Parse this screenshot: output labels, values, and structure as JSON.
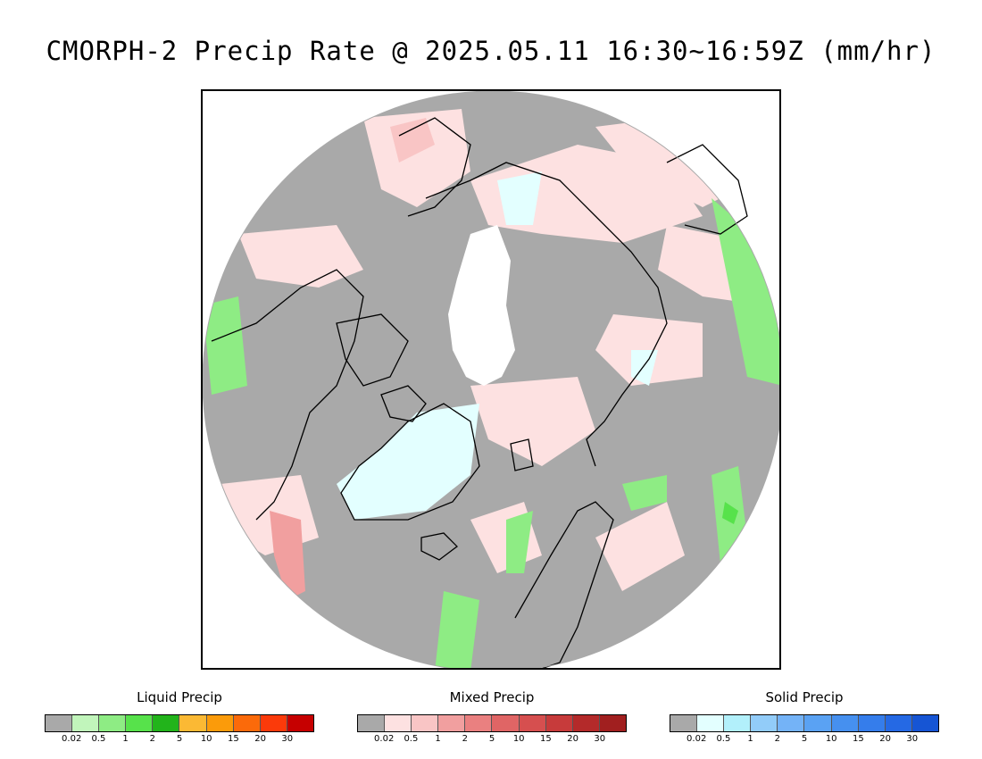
{
  "title": "CMORPH-2 Precip Rate @ 2025.05.11 16:30~16:59Z (mm/hr)",
  "map": {
    "projection": "north-polar-stereographic",
    "no_precip_color": "#a9a9a9",
    "polar_gap_color": "#ffffff",
    "coastline_color": "#000000"
  },
  "legends": [
    {
      "id": "liquid",
      "title": "Liquid Precip",
      "colors": [
        "#a9a9a9",
        "#c1f5bb",
        "#8eec84",
        "#57e24b",
        "#22b41b",
        "#fbb934",
        "#fb9b0a",
        "#fb6a0a",
        "#fb3a0a",
        "#c60000"
      ],
      "ticks": [
        "0.02",
        "0.5",
        "1",
        "2",
        "5",
        "10",
        "15",
        "20",
        "30"
      ]
    },
    {
      "id": "mixed",
      "title": "Mixed Precip",
      "colors": [
        "#a9a9a9",
        "#fde1e1",
        "#f9c5c5",
        "#f19f9f",
        "#ea8080",
        "#e06565",
        "#d64f4f",
        "#c73b3b",
        "#b42a2a",
        "#a11f1f"
      ],
      "ticks": [
        "0.02",
        "0.5",
        "1",
        "2",
        "5",
        "10",
        "15",
        "20",
        "30"
      ]
    },
    {
      "id": "solid",
      "title": "Solid Precip",
      "colors": [
        "#a9a9a9",
        "#e3ffff",
        "#b2f0fb",
        "#92ccf9",
        "#74b3f7",
        "#5aa2f3",
        "#4690ef",
        "#357deb",
        "#2569e4",
        "#1655d4"
      ],
      "ticks": [
        "0.02",
        "0.5",
        "1",
        "2",
        "5",
        "10",
        "15",
        "20",
        "30"
      ]
    }
  ]
}
